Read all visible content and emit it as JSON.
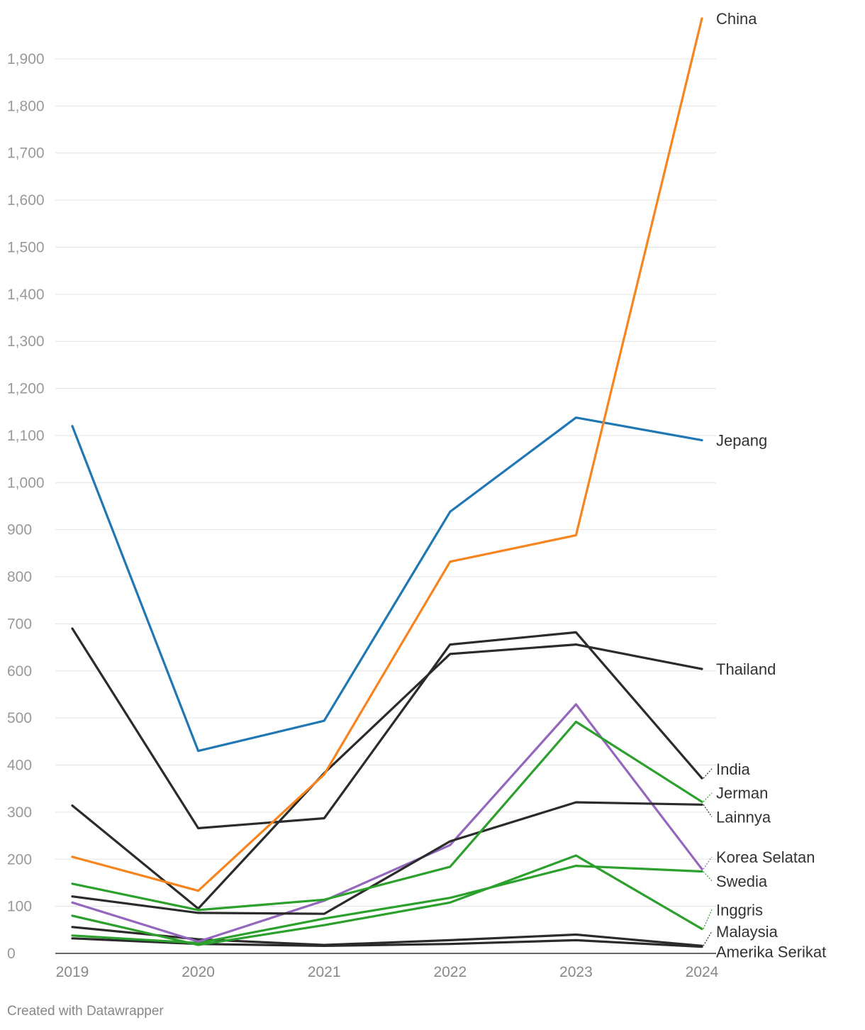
{
  "chart_data": {
    "type": "line",
    "title": "",
    "xlabel": "",
    "ylabel": "",
    "x": [
      "2019",
      "2020",
      "2021",
      "2022",
      "2023",
      "2024"
    ],
    "ylim": [
      0,
      2000
    ],
    "yticks": [
      0,
      100,
      200,
      300,
      400,
      500,
      600,
      700,
      800,
      900,
      1000,
      1100,
      1200,
      1300,
      1400,
      1500,
      1600,
      1700,
      1800,
      1900
    ],
    "ytick_labels": [
      "0",
      "100",
      "200",
      "300",
      "400",
      "500",
      "600",
      "700",
      "800",
      "900",
      "1,000",
      "1,100",
      "1,200",
      "1,300",
      "1,400",
      "1,500",
      "1,600",
      "1,700",
      "1,800",
      "1,900"
    ],
    "grid": true,
    "legend": "direct labels at line ends",
    "series": [
      {
        "name": "China",
        "color": "#f7841d",
        "values": [
          205,
          133,
          380,
          832,
          888,
          1986
        ],
        "label_y": 1986
      },
      {
        "name": "Jepang",
        "color": "#1f77b4",
        "values": [
          1120,
          430,
          494,
          938,
          1138,
          1090
        ],
        "label_y": 1090
      },
      {
        "name": "Thailand",
        "color": "#2b2b2b",
        "values": [
          314,
          95,
          383,
          636,
          656,
          604
        ],
        "label_y": 604
      },
      {
        "name": "India",
        "color": "#2b2b2b",
        "values": [
          690,
          266,
          287,
          656,
          682,
          372
        ],
        "label_y": 392
      },
      {
        "name": "Jerman",
        "color": "#2ca02c",
        "values": [
          148,
          92,
          114,
          184,
          492,
          322
        ],
        "label_y": 341
      },
      {
        "name": "Lainnya",
        "color": "#2b2b2b",
        "values": [
          121,
          86,
          84,
          238,
          321,
          316
        ],
        "label_y": 290
      },
      {
        "name": "Korea Selatan",
        "color": "#9467bd",
        "values": [
          108,
          25,
          112,
          230,
          529,
          179
        ],
        "label_y": 205
      },
      {
        "name": "Swedia",
        "color": "#2ca02c",
        "values": [
          38,
          22,
          74,
          118,
          186,
          174
        ],
        "label_y": 154
      },
      {
        "name": "Inggris",
        "color": "#2ca02c",
        "values": [
          80,
          18,
          60,
          108,
          208,
          52
        ],
        "label_y": 93
      },
      {
        "name": "Malaysia",
        "color": "#2b2b2b",
        "values": [
          56,
          30,
          18,
          28,
          40,
          16
        ],
        "label_y": 47
      },
      {
        "name": "Amerika Serikat",
        "color": "#2b2b2b",
        "values": [
          32,
          20,
          16,
          20,
          28,
          14
        ],
        "label_y": 4
      }
    ]
  },
  "footer": {
    "credit": "Created with Datawrapper"
  }
}
